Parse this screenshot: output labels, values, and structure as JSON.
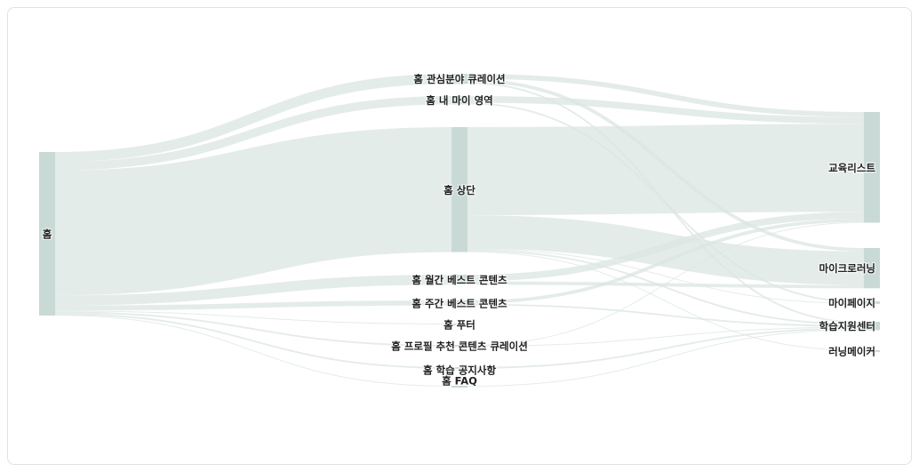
{
  "colors": {
    "node": "#c9d9d6",
    "link": "#dbe5e2"
  },
  "nodes": [
    {
      "id": "home",
      "label": "홈",
      "column": 0
    },
    {
      "id": "interest",
      "label": "홈 관심분야 큐레이션",
      "column": 1
    },
    {
      "id": "mymy",
      "label": "홈 내 마이 영역",
      "column": 1
    },
    {
      "id": "top",
      "label": "홈 상단",
      "column": 1
    },
    {
      "id": "monthly",
      "label": "홈 월간 베스트 콘텐츠",
      "column": 1
    },
    {
      "id": "weekly",
      "label": "홈 주간 베스트 콘텐츠",
      "column": 1
    },
    {
      "id": "footer",
      "label": "홈 푸터",
      "column": 1
    },
    {
      "id": "profile",
      "label": "홈 프로필 추천 콘텐츠 큐레이션",
      "column": 1
    },
    {
      "id": "notice",
      "label": "홈 학습 공지사항",
      "column": 1
    },
    {
      "id": "faq",
      "label": "홈 FAQ",
      "column": 1
    },
    {
      "id": "edulist",
      "label": "교육리스트",
      "column": 2
    },
    {
      "id": "micro",
      "label": "마이크로러닝",
      "column": 2
    },
    {
      "id": "mypage",
      "label": "마이페이지",
      "column": 2
    },
    {
      "id": "support",
      "label": "학습지원센터",
      "column": 2
    },
    {
      "id": "maker",
      "label": "러닝메이커",
      "column": 2
    }
  ],
  "links": [
    {
      "source": "home",
      "target": "interest",
      "value": 12
    },
    {
      "source": "home",
      "target": "mymy",
      "value": 10
    },
    {
      "source": "home",
      "target": "top",
      "value": 149
    },
    {
      "source": "home",
      "target": "monthly",
      "value": 12
    },
    {
      "source": "home",
      "target": "weekly",
      "value": 6
    },
    {
      "source": "home",
      "target": "footer",
      "value": 1
    },
    {
      "source": "home",
      "target": "profile",
      "value": 2
    },
    {
      "source": "home",
      "target": "notice",
      "value": 2
    },
    {
      "source": "home",
      "target": "faq",
      "value": 1
    },
    {
      "source": "interest",
      "target": "edulist",
      "value": 6
    },
    {
      "source": "interest",
      "target": "micro",
      "value": 4
    },
    {
      "source": "interest",
      "target": "support",
      "value": 2
    },
    {
      "source": "mymy",
      "target": "edulist",
      "value": 8
    },
    {
      "source": "mymy",
      "target": "mypage",
      "value": 2
    },
    {
      "source": "top",
      "target": "edulist",
      "value": 105
    },
    {
      "source": "top",
      "target": "micro",
      "value": 40
    },
    {
      "source": "top",
      "target": "mypage",
      "value": 1
    },
    {
      "source": "top",
      "target": "support",
      "value": 2
    },
    {
      "source": "top",
      "target": "maker",
      "value": 1
    },
    {
      "source": "monthly",
      "target": "edulist",
      "value": 8
    },
    {
      "source": "monthly",
      "target": "micro",
      "value": 4
    },
    {
      "source": "weekly",
      "target": "edulist",
      "value": 4
    },
    {
      "source": "weekly",
      "target": "support",
      "value": 2
    },
    {
      "source": "profile",
      "target": "edulist",
      "value": 1
    },
    {
      "source": "profile",
      "target": "support",
      "value": 1
    },
    {
      "source": "notice",
      "target": "support",
      "value": 2
    },
    {
      "source": "faq",
      "target": "support",
      "value": 1
    }
  ]
}
